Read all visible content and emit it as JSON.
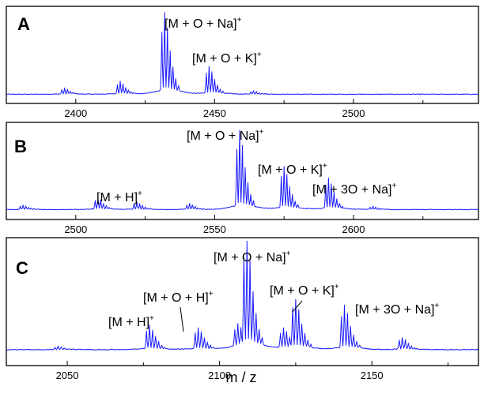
{
  "chart_data": [
    {
      "type": "line",
      "panel_label": "A",
      "xlim": [
        2375,
        2545
      ],
      "xticks": [
        2400,
        2450,
        2500
      ],
      "minor_step": 25,
      "line_color": "#1a1aff",
      "peaks": [
        {
          "x": 2395,
          "height": 0.07
        },
        {
          "x": 2415,
          "height": 0.15
        },
        {
          "x": 2431,
          "height": 0.95
        },
        {
          "x": 2447,
          "height": 0.32
        },
        {
          "x": 2463,
          "height": 0.04
        }
      ],
      "annotations": [
        {
          "text": "[M + O + Na]",
          "sup": "+"
        },
        {
          "text": "[M + O + K]",
          "sup": "+"
        }
      ]
    },
    {
      "type": "line",
      "panel_label": "B",
      "xlim": [
        2475,
        2645
      ],
      "xticks": [
        2500,
        2550,
        2600
      ],
      "minor_step": 25,
      "line_color": "#1a1aff",
      "peaks": [
        {
          "x": 2480,
          "height": 0.05
        },
        {
          "x": 2507,
          "height": 0.14
        },
        {
          "x": 2521,
          "height": 0.09
        },
        {
          "x": 2540,
          "height": 0.07
        },
        {
          "x": 2558,
          "height": 0.95
        },
        {
          "x": 2574,
          "height": 0.52
        },
        {
          "x": 2590,
          "height": 0.38
        },
        {
          "x": 2606,
          "height": 0.04
        }
      ],
      "annotations": [
        {
          "text": "[M + H]",
          "sup": "+"
        },
        {
          "text": "[M + O + Na]",
          "sup": "+"
        },
        {
          "text": "[M + O + K]",
          "sup": "+"
        },
        {
          "text": "[M + 3O + Na]",
          "sup": "+"
        }
      ]
    },
    {
      "type": "line",
      "panel_label": "C",
      "xlim": [
        2030,
        2185
      ],
      "xticks": [
        2050,
        2100,
        2150
      ],
      "minor_step": 25,
      "line_color": "#1a1aff",
      "peaks": [
        {
          "x": 2046,
          "height": 0.03
        },
        {
          "x": 2076,
          "height": 0.22
        },
        {
          "x": 2092,
          "height": 0.2
        },
        {
          "x": 2105,
          "height": 0.2
        },
        {
          "x": 2108,
          "height": 0.95
        },
        {
          "x": 2120,
          "height": 0.18
        },
        {
          "x": 2124,
          "height": 0.42
        },
        {
          "x": 2140,
          "height": 0.4
        },
        {
          "x": 2159,
          "height": 0.11
        }
      ],
      "annotations": [
        {
          "text": "[M + H]",
          "sup": "+"
        },
        {
          "text": "[M + O + H]",
          "sup": "+"
        },
        {
          "text": "[M + O + Na]",
          "sup": "+"
        },
        {
          "text": "[M + O + K]",
          "sup": "+"
        },
        {
          "text": "[M + 3O + Na]",
          "sup": "+"
        }
      ]
    }
  ],
  "xlabel": "m / z"
}
